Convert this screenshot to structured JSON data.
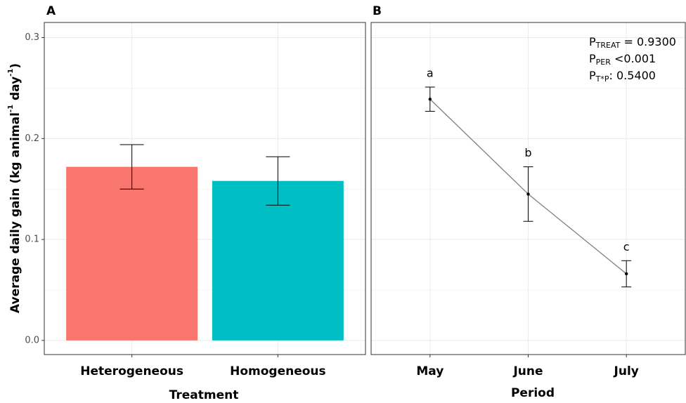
{
  "chart_data": [
    {
      "type": "bar",
      "title": "A",
      "categories": [
        "Heterogeneous",
        "Homogeneous"
      ],
      "values": [
        0.172,
        0.158
      ],
      "errors": [
        0.022,
        0.024
      ],
      "colors": [
        "#F8766D",
        "#00BFC4"
      ],
      "xlabel": "Treatment",
      "ylabel": [
        "Average daily gain (kg animal",
        "-1",
        " day",
        "-1",
        ")"
      ],
      "ylim": [
        -0.014,
        0.315
      ],
      "yticks": [
        {
          "value": 0,
          "label": "0.0"
        },
        0.1,
        0.2,
        0.3
      ],
      "grid": true
    },
    {
      "type": "line",
      "title": "B",
      "categories": [
        "May",
        "June",
        "July"
      ],
      "values": [
        0.239,
        0.145,
        0.066
      ],
      "errors": [
        0.012,
        0.027,
        0.013
      ],
      "letters": [
        "a",
        "b",
        "c"
      ],
      "color": "#808080",
      "xlabel": "Period",
      "ylim": [
        -0.014,
        0.315
      ],
      "yticks": [
        0,
        0.1,
        0.2,
        0.3
      ],
      "grid": true,
      "annotations": [
        {
          "base": "P",
          "sub": "TREAT",
          "text": " = 0.9300"
        },
        {
          "base": "P",
          "sub": "PER",
          "text": " <0.001"
        },
        {
          "base": "P",
          "sub": "T*P",
          "text": ": 0.5400"
        }
      ]
    }
  ]
}
